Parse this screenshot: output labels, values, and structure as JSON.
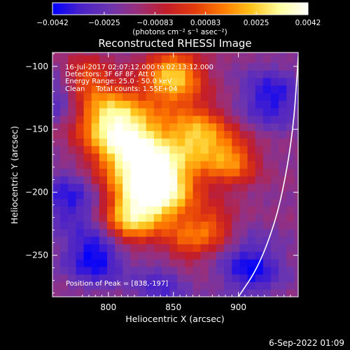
{
  "colors": {
    "background": "#000000",
    "foreground": "#ffffff",
    "colormap": [
      "#0000ff",
      "#4b22c8",
      "#6b35b0",
      "#9a2f7a",
      "#c21d2a",
      "#e23a0d",
      "#ff7a00",
      "#ffc21a",
      "#ffffa0",
      "#ffffff"
    ]
  },
  "colorbar": {
    "ticks": [
      "-0.0042",
      "-0.0025",
      "-0.00083",
      "0.00083",
      "0.0025",
      "0.0042"
    ],
    "unit_label": "(photons cm⁻² s⁻¹ asec⁻²)",
    "range": [
      -0.0042,
      0.0042
    ]
  },
  "chart_data": {
    "type": "heatmap",
    "title": "Reconstructed RHESSI Image",
    "xlabel": "Heliocentric X (arcsec)",
    "ylabel": "Heliocentric Y (arcsec)",
    "xlim": [
      757,
      946
    ],
    "ylim": [
      -283,
      -89
    ],
    "x_ticks": [
      800,
      850,
      900
    ],
    "y_ticks": [
      -100,
      -150,
      -200,
      -250
    ],
    "x_tick_labels": [
      "800",
      "850",
      "900"
    ],
    "y_tick_labels": [
      "−100",
      "−150",
      "−200",
      "−250"
    ],
    "annotations": [
      "16-Jul-2017 02:07:12.000 to 02:13:12.000",
      "Detectors: 3F 6F 8F, Att 0",
      "Energy Range: 25.0 - 50.0 keV",
      "Clean     Total counts: 1.55E+04"
    ],
    "peak_label": "Position of Peak = [838,-197]",
    "peak": [
      838,
      -197
    ],
    "limb_curve": [
      [
        900,
        -283
      ],
      [
        915,
        -260
      ],
      [
        928,
        -225
      ],
      [
        936,
        -190
      ],
      [
        942,
        -150
      ],
      [
        945,
        -110
      ],
      [
        946,
        -92
      ]
    ],
    "sources": [
      {
        "x": 838,
        "y": -197,
        "amp": 1.0,
        "sigma": 20
      },
      {
        "x": 820,
        "y": -165,
        "amp": 0.78,
        "sigma": 22
      },
      {
        "x": 800,
        "y": -140,
        "amp": 0.62,
        "sigma": 18
      },
      {
        "x": 850,
        "y": -108,
        "amp": 0.7,
        "sigma": 16
      },
      {
        "x": 870,
        "y": -155,
        "amp": 0.62,
        "sigma": 16
      },
      {
        "x": 895,
        "y": -175,
        "amp": 0.5,
        "sigma": 14
      },
      {
        "x": 815,
        "y": -222,
        "amp": 0.55,
        "sigma": 14
      },
      {
        "x": 880,
        "y": -228,
        "amp": 0.38,
        "sigma": 12
      },
      {
        "x": 860,
        "y": -240,
        "amp": 0.32,
        "sigma": 12
      },
      {
        "x": 782,
        "y": -108,
        "amp": 0.35,
        "sigma": 12
      },
      {
        "x": 770,
        "y": -205,
        "amp": -0.35,
        "sigma": 16
      },
      {
        "x": 790,
        "y": -250,
        "amp": -0.45,
        "sigma": 16
      },
      {
        "x": 910,
        "y": -260,
        "amp": -0.4,
        "sigma": 16
      },
      {
        "x": 925,
        "y": -125,
        "amp": -0.38,
        "sigma": 16
      },
      {
        "x": 760,
        "y": -125,
        "amp": -0.25,
        "sigma": 14
      },
      {
        "x": 840,
        "y": -275,
        "amp": -0.25,
        "sigma": 14
      }
    ]
  },
  "footer": {
    "timestamp": "6-Sep-2022 01:09"
  }
}
